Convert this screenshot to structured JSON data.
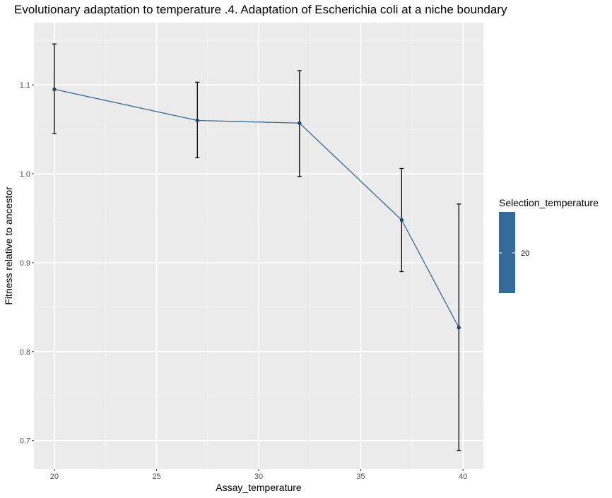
{
  "chart_data": {
    "type": "line",
    "title": "Evolutionary adaptation to temperature .4. Adaptation of Escherichia coli at a niche boundary",
    "xlabel": "Assay_temperature",
    "ylabel": "Fitness relative to ancestor",
    "xlim": [
      19,
      41
    ],
    "ylim": [
      0.668,
      1.17
    ],
    "x_ticks": [
      20,
      25,
      30,
      35,
      40
    ],
    "y_ticks": [
      0.7,
      0.8,
      0.9,
      1.0,
      1.1
    ],
    "y_tick_labels": [
      "0.7",
      "0.8",
      "0.9",
      "1.0",
      "1.1"
    ],
    "grid": true,
    "series": [
      {
        "name": "20",
        "color": "#336a98",
        "x": [
          20,
          27,
          32,
          37,
          39.8
        ],
        "y": [
          1.095,
          1.06,
          1.057,
          0.948,
          0.827
        ],
        "error_low": [
          1.045,
          1.018,
          0.997,
          0.89,
          0.689
        ],
        "error_high": [
          1.146,
          1.103,
          1.116,
          1.006,
          0.966
        ]
      }
    ],
    "legend": {
      "title": "Selection_temperature",
      "position": "right",
      "labels": [
        "20"
      ],
      "color": "#336a98"
    }
  }
}
